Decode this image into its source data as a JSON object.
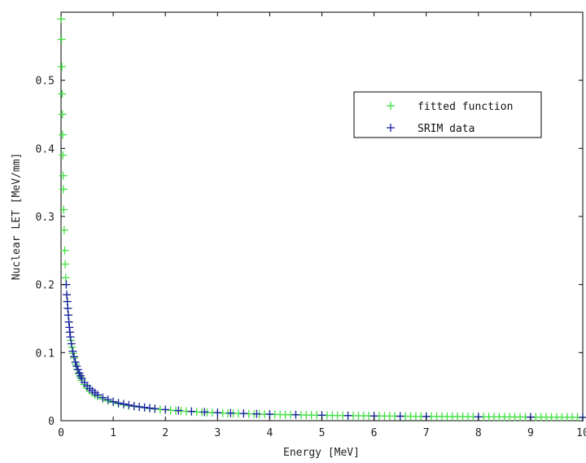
{
  "chart_data": {
    "type": "scatter",
    "title": "",
    "xlabel": "Energy [MeV]",
    "ylabel": "Nuclear LET [MeV/mm]",
    "xlim": [
      0,
      10
    ],
    "ylim": [
      0,
      0.6
    ],
    "x_ticks": [
      "0",
      "1",
      "2",
      "3",
      "4",
      "5",
      "6",
      "7",
      "8",
      "9",
      "10"
    ],
    "y_ticks": [
      "0",
      "0.1",
      "0.2",
      "0.3",
      "0.4",
      "0.5"
    ],
    "grid": false,
    "legend_position": "top-right",
    "marker": "+",
    "series": [
      {
        "name": "fitted function",
        "color": "#3fe03f",
        "x": [
          0.005,
          0.01,
          0.015,
          0.02,
          0.025,
          0.03,
          0.035,
          0.04,
          0.045,
          0.05,
          0.06,
          0.07,
          0.08,
          0.09,
          0.1,
          0.11,
          0.12,
          0.13,
          0.14,
          0.15,
          0.17,
          0.19,
          0.21,
          0.23,
          0.25,
          0.28,
          0.31,
          0.34,
          0.37,
          0.4,
          0.45,
          0.5,
          0.55,
          0.6,
          0.65,
          0.7,
          0.8,
          0.9,
          1.0,
          1.1,
          1.2,
          1.3,
          1.4,
          1.5,
          1.6,
          1.7,
          1.8,
          1.9,
          2.0,
          2.1,
          2.2,
          2.3,
          2.4,
          2.5,
          2.6,
          2.7,
          2.8,
          2.9,
          3.0,
          3.1,
          3.2,
          3.3,
          3.4,
          3.5,
          3.6,
          3.7,
          3.8,
          3.9,
          4.0,
          4.1,
          4.2,
          4.3,
          4.4,
          4.5,
          4.6,
          4.7,
          4.8,
          4.9,
          5.0,
          5.1,
          5.2,
          5.3,
          5.4,
          5.5,
          5.6,
          5.7,
          5.8,
          5.9,
          6.0,
          6.1,
          6.2,
          6.3,
          6.4,
          6.5,
          6.6,
          6.7,
          6.8,
          6.9,
          7.0,
          7.1,
          7.2,
          7.3,
          7.4,
          7.5,
          7.6,
          7.7,
          7.8,
          7.9,
          8.0,
          8.1,
          8.2,
          8.3,
          8.4,
          8.5,
          8.6,
          8.7,
          8.8,
          8.9,
          9.0,
          9.1,
          9.2,
          9.3,
          9.4,
          9.5,
          9.6,
          9.7,
          9.8,
          9.9,
          10.0
        ],
        "y": [
          0.59,
          0.56,
          0.52,
          0.48,
          0.45,
          0.42,
          0.39,
          0.36,
          0.34,
          0.31,
          0.28,
          0.25,
          0.23,
          0.21,
          0.2,
          0.185,
          0.175,
          0.165,
          0.155,
          0.145,
          0.13,
          0.118,
          0.108,
          0.099,
          0.092,
          0.083,
          0.075,
          0.069,
          0.064,
          0.059,
          0.053,
          0.048,
          0.044,
          0.041,
          0.038,
          0.036,
          0.032,
          0.029,
          0.027,
          0.025,
          0.0235,
          0.022,
          0.021,
          0.02,
          0.019,
          0.018,
          0.0172,
          0.0165,
          0.016,
          0.0153,
          0.0147,
          0.0142,
          0.0137,
          0.0133,
          0.0129,
          0.0125,
          0.0121,
          0.0118,
          0.0115,
          0.0112,
          0.011,
          0.0107,
          0.0105,
          0.0103,
          0.01,
          0.0098,
          0.0096,
          0.0095,
          0.0093,
          0.0091,
          0.009,
          0.0088,
          0.0087,
          0.0085,
          0.0084,
          0.0083,
          0.0082,
          0.008,
          0.0079,
          0.0078,
          0.0077,
          0.0076,
          0.0075,
          0.0074,
          0.0073,
          0.0072,
          0.0072,
          0.0071,
          0.007,
          0.0069,
          0.0068,
          0.0068,
          0.0067,
          0.0066,
          0.0066,
          0.0065,
          0.0064,
          0.0064,
          0.0063,
          0.0062,
          0.0062,
          0.0061,
          0.0061,
          0.006,
          0.006,
          0.0059,
          0.0059,
          0.0058,
          0.0058,
          0.0057,
          0.0057,
          0.0056,
          0.0056,
          0.0055,
          0.0055,
          0.0055,
          0.0054,
          0.0054,
          0.0053,
          0.0053,
          0.0053,
          0.0052,
          0.0052,
          0.0051,
          0.0051,
          0.0051,
          0.005,
          0.005,
          0.005
        ]
      },
      {
        "name": "SRIM data",
        "color": "#1c1ca8",
        "x": [
          0.1,
          0.11,
          0.12,
          0.13,
          0.14,
          0.15,
          0.16,
          0.17,
          0.18,
          0.2,
          0.225,
          0.25,
          0.275,
          0.3,
          0.325,
          0.35,
          0.375,
          0.4,
          0.45,
          0.5,
          0.55,
          0.6,
          0.65,
          0.7,
          0.8,
          0.9,
          1.0,
          1.1,
          1.2,
          1.3,
          1.4,
          1.5,
          1.6,
          1.7,
          1.8,
          2.0,
          2.25,
          2.5,
          2.75,
          3.0,
          3.25,
          3.5,
          3.75,
          4.0,
          4.5,
          5.0,
          5.5,
          6.0,
          6.5,
          7.0,
          8.0,
          9.0,
          10.0
        ],
        "y": [
          0.2,
          0.185,
          0.175,
          0.165,
          0.155,
          0.145,
          0.137,
          0.13,
          0.123,
          0.113,
          0.102,
          0.094,
          0.086,
          0.08,
          0.075,
          0.07,
          0.066,
          0.062,
          0.056,
          0.051,
          0.047,
          0.044,
          0.041,
          0.038,
          0.034,
          0.031,
          0.028,
          0.026,
          0.0245,
          0.023,
          0.0215,
          0.0205,
          0.0195,
          0.0185,
          0.0177,
          0.0163,
          0.0149,
          0.0137,
          0.0127,
          0.0119,
          0.0112,
          0.0106,
          0.01,
          0.0096,
          0.0088,
          0.0081,
          0.0075,
          0.007,
          0.0066,
          0.0063,
          0.0057,
          0.0052,
          0.0048
        ]
      }
    ]
  }
}
